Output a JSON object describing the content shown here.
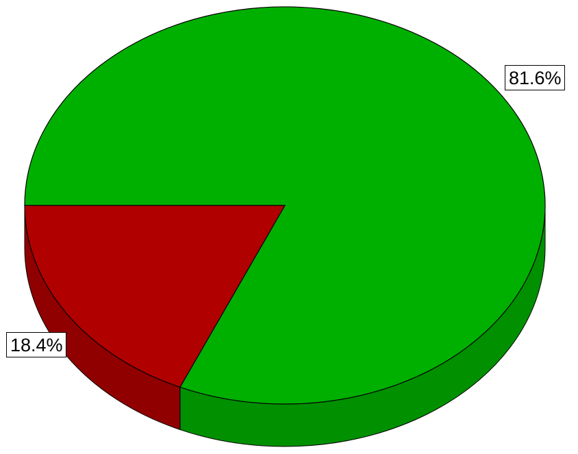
{
  "chart_data": {
    "type": "pie",
    "style": "3d-tilted",
    "slices": [
      {
        "value": 81.6,
        "label": "81.6%",
        "color": "#00b000"
      },
      {
        "value": 18.4,
        "label": "18.4%",
        "color": "#b00000"
      }
    ],
    "legend": "none",
    "grid": false
  }
}
